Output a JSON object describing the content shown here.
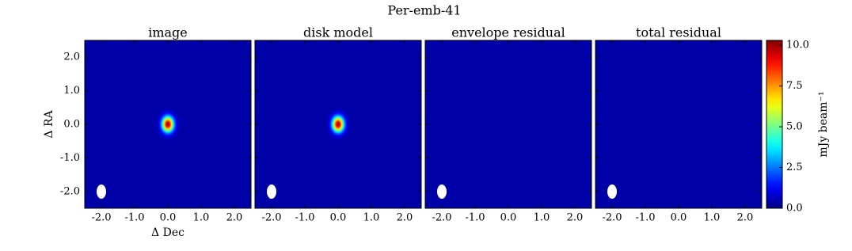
{
  "chart_data": {
    "type": "image-grid",
    "title": "Per-emb-41",
    "x_label": "Δ Dec",
    "y_label": "Δ RA",
    "colormap": "jet",
    "background_level": 0.4,
    "xlim": [
      -2.5,
      2.5
    ],
    "ylim": [
      -2.5,
      2.5
    ],
    "xticks": [
      {
        "value": -2,
        "label": "-2.0"
      },
      {
        "value": -1,
        "label": "-1.0"
      },
      {
        "value": 0,
        "label": "0.0"
      },
      {
        "value": 1,
        "label": "1.0"
      },
      {
        "value": 2,
        "label": "2.0"
      }
    ],
    "yticks": [
      {
        "value": -2,
        "label": "-2.0"
      },
      {
        "value": -1,
        "label": "-1.0"
      },
      {
        "value": 0,
        "label": "0.0"
      },
      {
        "value": 1,
        "label": "1.0"
      },
      {
        "value": 2,
        "label": "2.0"
      }
    ],
    "panels": [
      {
        "title": "image",
        "sources": [
          {
            "x": 0,
            "y": 0,
            "peak": 10
          }
        ]
      },
      {
        "title": "disk model",
        "sources": [
          {
            "x": 0,
            "y": 0,
            "peak": 10
          }
        ]
      },
      {
        "title": "envelope residual",
        "sources": []
      },
      {
        "title": "total residual",
        "sources": []
      }
    ],
    "colorbar": {
      "label": "mJy beam⁻¹",
      "lim": [
        0,
        10.3
      ],
      "ticks": [
        {
          "value": 0,
          "label": "0.0"
        },
        {
          "value": 2.5,
          "label": "2.5"
        },
        {
          "value": 5,
          "label": "5.0"
        },
        {
          "value": 7.5,
          "label": "7.5"
        },
        {
          "value": 10,
          "label": "10.0"
        }
      ]
    }
  }
}
